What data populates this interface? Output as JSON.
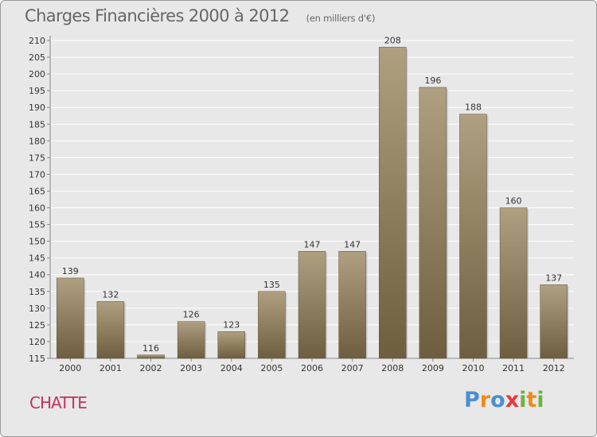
{
  "title": "Charges Financières 2000 à 2012",
  "subtitle": "(en milliers d'€)",
  "place": "CHATTE",
  "logo": {
    "text": "Proxiti",
    "colors": [
      "#4a8fd0",
      "#f08a1c",
      "#4a8fd0",
      "#e33b3b",
      "#6cb33f",
      "#f08a1c",
      "#6cb33f"
    ]
  },
  "colors": {
    "bar_top": "#b0a082",
    "bar_bottom": "#6e5e40",
    "background": "#e8e8e8",
    "place": "#c0345a"
  },
  "chart_data": {
    "type": "bar",
    "categories": [
      "2000",
      "2001",
      "2002",
      "2003",
      "2004",
      "2005",
      "2006",
      "2007",
      "2008",
      "2009",
      "2010",
      "2011",
      "2012"
    ],
    "values": [
      139,
      132,
      116,
      126,
      123,
      135,
      147,
      147,
      208,
      196,
      188,
      160,
      137
    ],
    "ylim": [
      115,
      210
    ],
    "yticks": [
      115,
      120,
      125,
      130,
      135,
      140,
      145,
      150,
      155,
      160,
      165,
      170,
      175,
      180,
      185,
      190,
      195,
      200,
      205,
      210
    ],
    "grid": true
  }
}
